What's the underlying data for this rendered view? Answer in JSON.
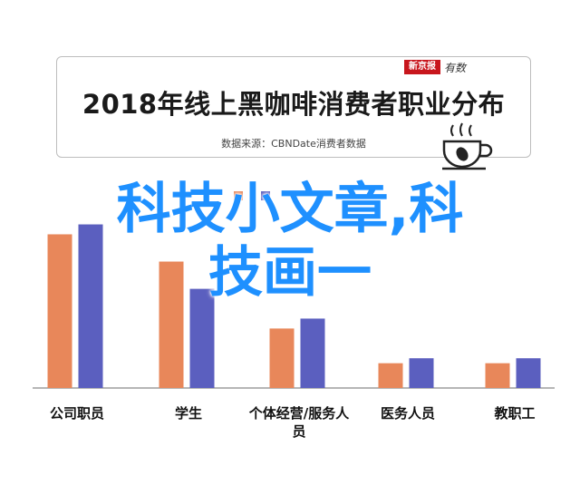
{
  "brand": {
    "badge": "新京报",
    "script": "有数"
  },
  "chart_data": {
    "type": "bar",
    "title": "2018年线上黑咖啡消费者职业分布",
    "subtitle": "数据来源：CBNDate消费者数据",
    "categories": [
      "公司职员",
      "学生",
      "个体经营/服务人员",
      "医务人员",
      "教职工"
    ],
    "series": [
      {
        "name": "",
        "color": "#e8875a",
        "values": [
          0.62,
          0.51,
          0.24,
          0.1,
          0.1
        ]
      },
      {
        "name": "",
        "color": "#5b5fbf",
        "values": [
          0.66,
          0.4,
          0.28,
          0.12,
          0.12
        ]
      }
    ],
    "ylim": [
      0,
      0.8
    ],
    "grid": false
  },
  "watermark": {
    "line1": "科技小文章,科",
    "line2": "技画一"
  },
  "colors": {
    "bar_orange": "#e8875a",
    "bar_blue": "#5b5fbf",
    "watermark": "#1e90ff"
  },
  "icons": {
    "decoration": "coffee-cup-icon"
  }
}
